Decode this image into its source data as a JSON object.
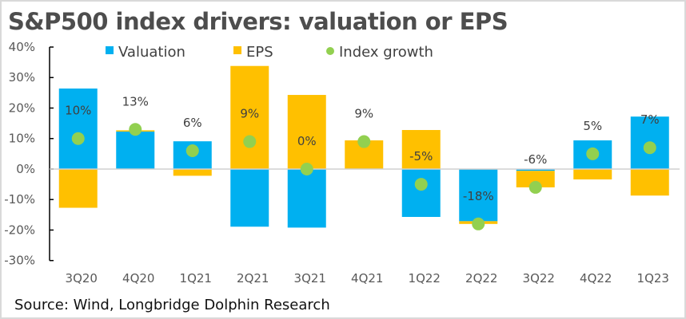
{
  "chart_data": {
    "type": "bar",
    "title": "S&P500 index drivers:  valuation or EPS",
    "source": "Source: Wind, Longbridge Dolphin Research",
    "categories": [
      "3Q20",
      "4Q20",
      "1Q21",
      "2Q21",
      "3Q21",
      "4Q21",
      "1Q22",
      "2Q22",
      "3Q22",
      "4Q22",
      "1Q23"
    ],
    "ylim": [
      -30,
      40
    ],
    "yticks": [
      "40%",
      "30%",
      "20%",
      "10%",
      "0%",
      "-10%",
      "-20%",
      "-30%"
    ],
    "ytick_values": [
      40,
      30,
      20,
      10,
      0,
      -10,
      -20,
      -30
    ],
    "stacked": true,
    "legend_position": "top",
    "series": [
      {
        "name": "Valuation",
        "kind": "bar",
        "color": "#00b0f0",
        "values": [
          26.4,
          12.3,
          9.1,
          -18.9,
          -19.2,
          0,
          -15.7,
          -17.1,
          -0.6,
          9.4,
          17.2
        ]
      },
      {
        "name": "EPS",
        "kind": "bar",
        "color": "#ffc000",
        "values": [
          -12.7,
          0.4,
          -2.2,
          33.8,
          24.3,
          9.4,
          12.8,
          -0.9,
          -5.4,
          -3.4,
          -8.7
        ]
      },
      {
        "name": "Index growth",
        "kind": "scatter",
        "color": "#92d050",
        "values": [
          10,
          13,
          6,
          9,
          0,
          9,
          -5,
          -18,
          -6,
          5,
          7
        ],
        "labels": [
          "10%",
          "13%",
          "6%",
          "9%",
          "0%",
          "9%",
          "-5%",
          "-18%",
          "-6%",
          "5%",
          "7%"
        ]
      }
    ],
    "watermark": "Longbridge Dolphin Research"
  }
}
